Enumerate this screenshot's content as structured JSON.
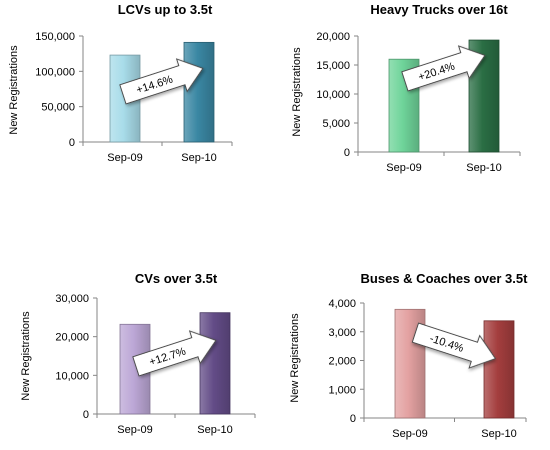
{
  "chart_data": [
    {
      "type": "bar",
      "title": "LCVs up to 3.5t",
      "ylabel": "New Registrations",
      "categories": [
        "Sep-09",
        "Sep-10"
      ],
      "values": [
        123000,
        141000
      ],
      "ylim": [
        0,
        150000
      ],
      "yticks": [
        "0",
        "50,000",
        "100,000",
        "150,000"
      ],
      "annotation": "+14.6%",
      "colors": [
        "#a8dce9",
        "#3a87a3"
      ]
    },
    {
      "type": "bar",
      "title": "Heavy Trucks over 16t",
      "ylabel": "New Registrations",
      "categories": [
        "Sep-09",
        "Sep-10"
      ],
      "values": [
        16000,
        19300
      ],
      "ylim": [
        0,
        20000
      ],
      "yticks": [
        "0",
        "5,000",
        "10,000",
        "15,000",
        "20,000"
      ],
      "annotation": "+20.4%",
      "colors": [
        "#6fd49a",
        "#2a6e44"
      ]
    },
    {
      "type": "bar",
      "title": "CVs over 3.5t",
      "ylabel": "New Registrations",
      "categories": [
        "Sep-09",
        "Sep-10"
      ],
      "values": [
        23200,
        26200
      ],
      "ylim": [
        0,
        30000
      ],
      "yticks": [
        "0",
        "10,000",
        "20,000",
        "30,000"
      ],
      "annotation": "+12.7%",
      "colors": [
        "#bca7d6",
        "#634c87"
      ]
    },
    {
      "type": "bar",
      "title": "Buses & Coaches over 3.5t",
      "ylabel": "New Registrations",
      "categories": [
        "Sep-09",
        "Sep-10"
      ],
      "values": [
        3780,
        3380
      ],
      "ylim": [
        0,
        4000
      ],
      "yticks": [
        "0",
        "1,000",
        "2,000",
        "3,000",
        "4,000"
      ],
      "annotation": "-10.4%",
      "colors": [
        "#e3a1a1",
        "#a43e3e"
      ]
    }
  ]
}
